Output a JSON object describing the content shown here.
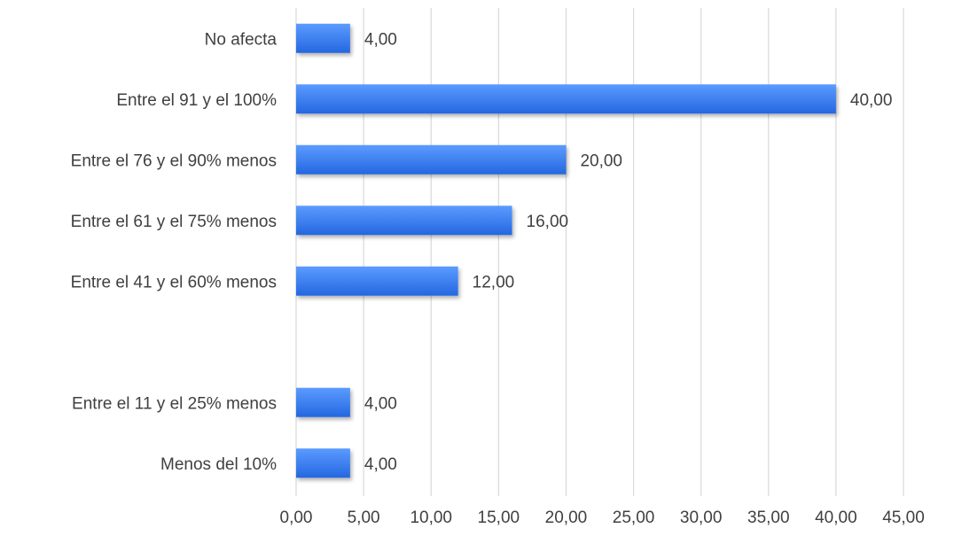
{
  "chart_data": {
    "type": "bar",
    "orientation": "horizontal",
    "categories": [
      "No afecta",
      "Entre el 91 y el 100%",
      "Entre el 76 y el 90% menos",
      "Entre el 61 y el 75% menos",
      "Entre el 41 y el 60% menos",
      "",
      "Entre el 11 y el 25% menos",
      "Menos del 10%"
    ],
    "values": [
      4,
      40,
      20,
      16,
      12,
      null,
      4,
      4
    ],
    "value_labels": [
      "4,00",
      "40,00",
      "20,00",
      "16,00",
      "12,00",
      "",
      "4,00",
      "4,00"
    ],
    "xlim": [
      0,
      45
    ],
    "x_ticks": [
      0,
      5,
      10,
      15,
      20,
      25,
      30,
      35,
      40,
      45
    ],
    "x_tick_labels": [
      "0,00",
      "5,00",
      "10,00",
      "15,00",
      "20,00",
      "25,00",
      "30,00",
      "35,00",
      "40,00",
      "45,00"
    ],
    "grid": true,
    "legend": "none",
    "title": "",
    "xlabel": "",
    "ylabel": "",
    "colors": {
      "bar_top": "#5b9bff",
      "bar_bottom": "#2467e0",
      "grid": "#d9d9d9",
      "text": "#404040"
    }
  }
}
